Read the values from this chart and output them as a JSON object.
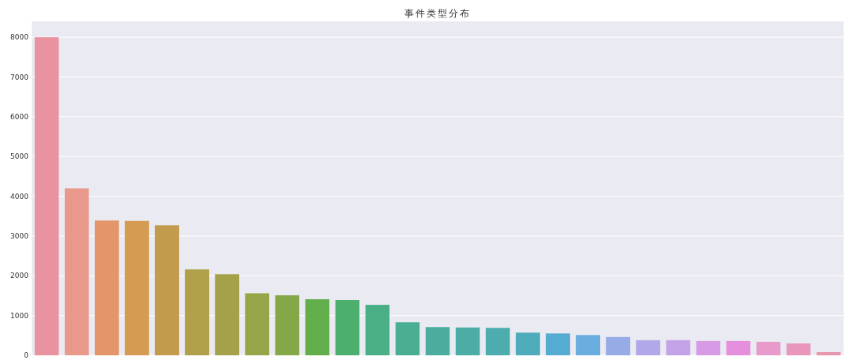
{
  "chart_data": {
    "type": "bar",
    "title": "事件类型分布",
    "categories": [
      null,
      null,
      null,
      null,
      null,
      null,
      null,
      null,
      null,
      null,
      null,
      null,
      null,
      null,
      null,
      null,
      null,
      null,
      null,
      null,
      null,
      null,
      null,
      null,
      null,
      null,
      null
    ],
    "values": [
      8000,
      4200,
      3390,
      3380,
      3270,
      2160,
      2040,
      1560,
      1510,
      1410,
      1390,
      1270,
      830,
      710,
      700,
      690,
      570,
      550,
      510,
      460,
      380,
      380,
      360,
      360,
      340,
      300,
      80
    ],
    "colors": [
      "#e8939f",
      "#e8998b",
      "#e5956a",
      "#d69b53",
      "#c39b4d",
      "#b1a04a",
      "#a5a14a",
      "#95a548",
      "#84a847",
      "#62ae4b",
      "#4daf6e",
      "#4aaf85",
      "#4aae93",
      "#4aad9d",
      "#4bada6",
      "#4cacae",
      "#4eabb9",
      "#54acd1",
      "#6aaee0",
      "#97ace6",
      "#b0a8e8",
      "#c3a2e7",
      "#d79be6",
      "#e68fdd",
      "#e89acb",
      "#e896bc",
      "#e895ad"
    ],
    "ylim": [
      0,
      8400
    ],
    "yticks": [
      0,
      1000,
      2000,
      3000,
      4000,
      5000,
      6000,
      7000,
      8000
    ],
    "grid": true
  }
}
